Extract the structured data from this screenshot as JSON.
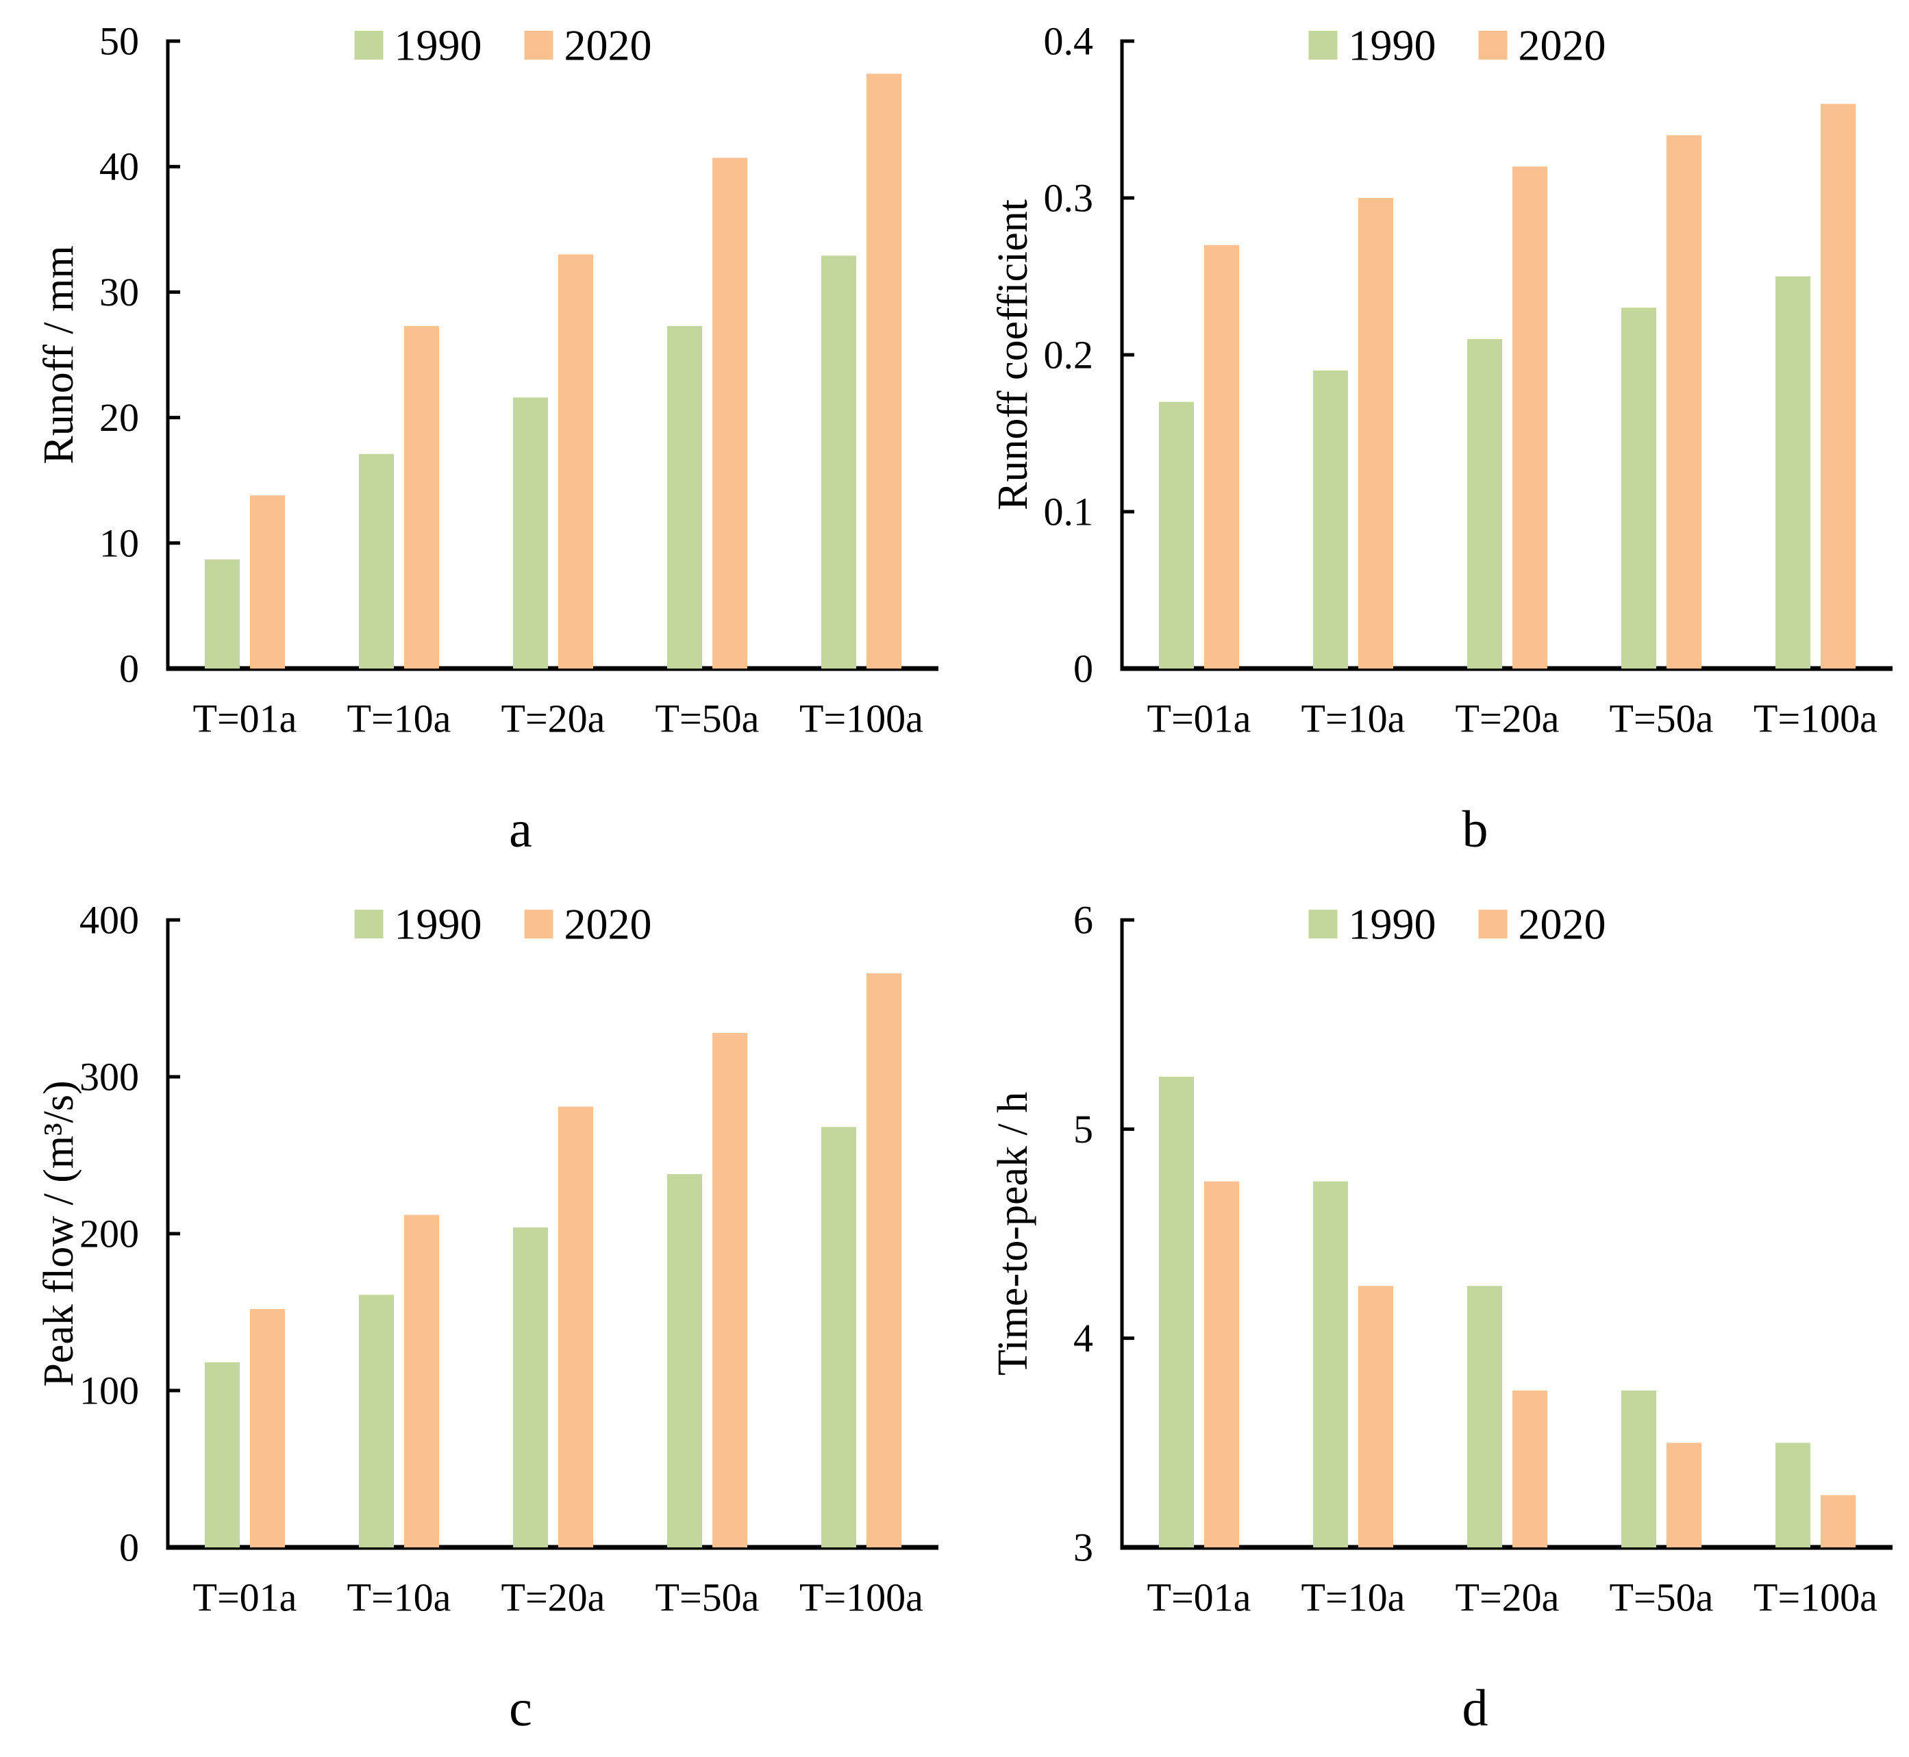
{
  "figure": {
    "background": "#ffffff",
    "description": "Four-panel bar chart figure comparing 1990 and 2020 scenarios across return periods"
  },
  "colors": {
    "series_1990": "#c3d69b",
    "series_2020": "#fac090",
    "axis": "#000000",
    "text": "#000000"
  },
  "legend": {
    "labels": [
      "1990",
      "2020"
    ],
    "position": "top-center"
  },
  "categories": [
    "T=01a",
    "T=10a",
    "T=20a",
    "T=50a",
    "T=100a"
  ],
  "chart_data": [
    {
      "type": "bar",
      "panel_label": "a",
      "title": "",
      "xlabel": "",
      "ylabel": "Runoff / mm",
      "ylim": [
        0,
        50
      ],
      "yticks": [
        0,
        10,
        20,
        30,
        40,
        50
      ],
      "ytick_labels": [
        "0",
        "10",
        "20",
        "30",
        "40",
        "50"
      ],
      "grid": false,
      "legend_position": "top-center",
      "categories": [
        "T=01a",
        "T=10a",
        "T=20a",
        "T=50a",
        "T=100a"
      ],
      "series": [
        {
          "name": "1990",
          "color": "#c3d69b",
          "values": [
            8.7,
            17.1,
            21.6,
            27.3,
            32.9
          ]
        },
        {
          "name": "2020",
          "color": "#fac090",
          "values": [
            13.8,
            27.3,
            33.0,
            40.7,
            47.4
          ]
        }
      ]
    },
    {
      "type": "bar",
      "panel_label": "b",
      "title": "",
      "xlabel": "",
      "ylabel": "Runoff coefficient",
      "ylim": [
        0,
        0.4
      ],
      "yticks": [
        0,
        0.1,
        0.2,
        0.3,
        0.4
      ],
      "ytick_labels": [
        "0",
        "0.1",
        "0.2",
        "0.3",
        "0.4"
      ],
      "grid": false,
      "legend_position": "top-center",
      "categories": [
        "T=01a",
        "T=10a",
        "T=20a",
        "T=50a",
        "T=100a"
      ],
      "series": [
        {
          "name": "1990",
          "color": "#c3d69b",
          "values": [
            0.17,
            0.19,
            0.21,
            0.23,
            0.25
          ]
        },
        {
          "name": "2020",
          "color": "#fac090",
          "values": [
            0.27,
            0.3,
            0.32,
            0.34,
            0.36
          ]
        }
      ]
    },
    {
      "type": "bar",
      "panel_label": "c",
      "title": "",
      "xlabel": "",
      "ylabel": "Peak flow / (m³/s)",
      "ylim": [
        0,
        400
      ],
      "yticks": [
        0,
        100,
        200,
        300,
        400
      ],
      "ytick_labels": [
        "0",
        "100",
        "200",
        "300",
        "400"
      ],
      "grid": false,
      "legend_position": "top-center",
      "categories": [
        "T=01a",
        "T=10a",
        "T=20a",
        "T=50a",
        "T=100a"
      ],
      "series": [
        {
          "name": "1990",
          "color": "#c3d69b",
          "values": [
            118,
            161,
            204,
            238,
            268
          ]
        },
        {
          "name": "2020",
          "color": "#fac090",
          "values": [
            152,
            212,
            281,
            328,
            366
          ]
        }
      ]
    },
    {
      "type": "bar",
      "panel_label": "d",
      "title": "",
      "xlabel": "",
      "ylabel": "Time-to-peak / h",
      "ylim": [
        3,
        6
      ],
      "yticks": [
        3,
        4,
        5,
        6
      ],
      "ytick_labels": [
        "3",
        "4",
        "5",
        "6"
      ],
      "grid": false,
      "legend_position": "top-center",
      "categories": [
        "T=01a",
        "T=10a",
        "T=20a",
        "T=50a",
        "T=100a"
      ],
      "series": [
        {
          "name": "1990",
          "color": "#c3d69b",
          "values": [
            5.25,
            4.75,
            4.25,
            3.75,
            3.5
          ]
        },
        {
          "name": "2020",
          "color": "#fac090",
          "values": [
            4.75,
            4.25,
            3.75,
            3.5,
            3.25
          ]
        }
      ]
    }
  ]
}
